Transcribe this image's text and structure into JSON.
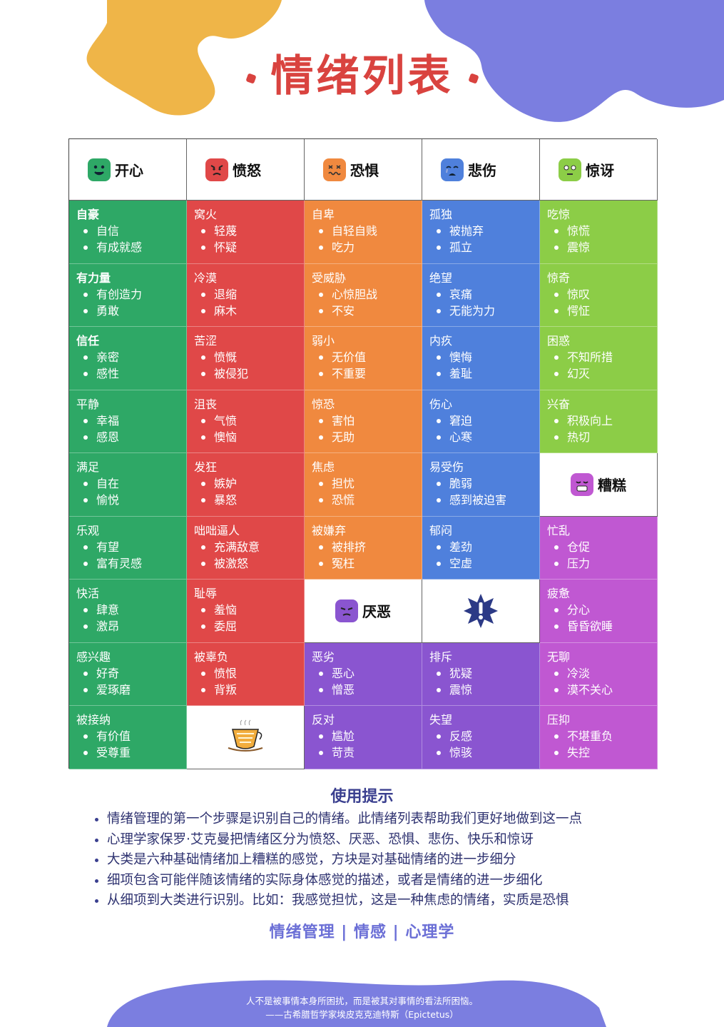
{
  "title": "情绪列表",
  "headers": [
    {
      "label": "开心",
      "color": "#2ea866"
    },
    {
      "label": "愤怒",
      "color": "#e04848"
    },
    {
      "label": "恐惧",
      "color": "#f0893f"
    },
    {
      "label": "悲伤",
      "color": "#4f80dc"
    },
    {
      "label": "惊讶",
      "color": "#8ccd47"
    }
  ],
  "col_happy": [
    {
      "head": "自豪",
      "items": [
        "自信",
        "有成就感"
      ]
    },
    {
      "head": "有力量",
      "items": [
        "有创造力",
        "勇敢"
      ]
    },
    {
      "head": "信任",
      "items": [
        "亲密",
        "感性"
      ]
    },
    {
      "head": "平静",
      "items": [
        "幸福",
        "感恩"
      ]
    },
    {
      "head": "满足",
      "items": [
        "自在",
        "愉悦"
      ]
    },
    {
      "head": "乐观",
      "items": [
        "有望",
        "富有灵感"
      ]
    },
    {
      "head": "快活",
      "items": [
        "肆意",
        "激昂"
      ]
    },
    {
      "head": "感兴趣",
      "items": [
        "好奇",
        "爱琢磨"
      ]
    },
    {
      "head": "被接纳",
      "items": [
        "有价值",
        "受尊重"
      ]
    }
  ],
  "col_angry": [
    {
      "head": "窝火",
      "items": [
        "轻蔑",
        "怀疑"
      ]
    },
    {
      "head": "冷漠",
      "items": [
        "退缩",
        "麻木"
      ]
    },
    {
      "head": "苦涩",
      "items": [
        "愤慨",
        "被侵犯"
      ]
    },
    {
      "head": "沮丧",
      "items": [
        "气愤",
        "懊恼"
      ]
    },
    {
      "head": "发狂",
      "items": [
        "嫉妒",
        "暴怒"
      ]
    },
    {
      "head": "咄咄逼人",
      "items": [
        "充满敌意",
        "被激怒"
      ]
    },
    {
      "head": "耻辱",
      "items": [
        "羞恼",
        "委屈"
      ]
    },
    {
      "head": "被辜负",
      "items": [
        "愤恨",
        "背叛"
      ]
    }
  ],
  "col_fear": [
    {
      "head": "自卑",
      "items": [
        "自轻自贱",
        "吃力"
      ]
    },
    {
      "head": "受威胁",
      "items": [
        "心惊胆战",
        "不安"
      ]
    },
    {
      "head": "弱小",
      "items": [
        "无价值",
        "不重要"
      ]
    },
    {
      "head": "惊恐",
      "items": [
        "害怕",
        "无助"
      ]
    },
    {
      "head": "焦虑",
      "items": [
        "担忧",
        "恐慌"
      ]
    },
    {
      "head": "被嫌弃",
      "items": [
        "被排挤",
        "冤枉"
      ]
    }
  ],
  "col_sad": [
    {
      "head": "孤独",
      "items": [
        "被抛弃",
        "孤立"
      ]
    },
    {
      "head": "绝望",
      "items": [
        "哀痛",
        "无能为力"
      ]
    },
    {
      "head": "内疚",
      "items": [
        "懊悔",
        "羞耻"
      ]
    },
    {
      "head": "伤心",
      "items": [
        "窘迫",
        "心寒"
      ]
    },
    {
      "head": "易受伤",
      "items": [
        "脆弱",
        "感到被迫害"
      ]
    },
    {
      "head": "郁闷",
      "items": [
        "差劲",
        "空虚"
      ]
    }
  ],
  "col_surprise": [
    {
      "head": "吃惊",
      "items": [
        "惊慌",
        "震惊"
      ]
    },
    {
      "head": "惊奇",
      "items": [
        "惊叹",
        "愕怔"
      ]
    },
    {
      "head": "困惑",
      "items": [
        "不知所措",
        "幻灭"
      ]
    },
    {
      "head": "兴奋",
      "items": [
        "积极向上",
        "热切"
      ]
    }
  ],
  "bad_label": "糟糕",
  "col_bad": [
    {
      "head": "忙乱",
      "items": [
        "仓促",
        "压力"
      ]
    },
    {
      "head": "疲惫",
      "items": [
        "分心",
        "昏昏欲睡"
      ]
    },
    {
      "head": "无聊",
      "items": [
        "冷淡",
        "漠不关心"
      ]
    },
    {
      "head": "压抑",
      "items": [
        "不堪重负",
        "失控"
      ]
    }
  ],
  "disgust_label": "厌恶",
  "col_disgust_fear": [
    {
      "head": "恶劣",
      "items": [
        "恶心",
        "憎恶"
      ]
    },
    {
      "head": "反对",
      "items": [
        "尴尬",
        "苛责"
      ]
    }
  ],
  "col_disgust_sad": [
    {
      "head": "排斥",
      "items": [
        "犹疑",
        "震惊"
      ]
    },
    {
      "head": "失望",
      "items": [
        "反感",
        "惊骇"
      ]
    }
  ],
  "tips": {
    "title": "使用提示",
    "items": [
      "情绪管理的第一个步骤是识别自己的情绪。此情绪列表帮助我们更好地做到这一点",
      "心理学家保罗·艾克曼把情绪区分为愤怒、厌恶、恐惧、悲伤、快乐和惊讶",
      "大类是六种基础情绪加上糟糕的感觉，方块是对基础情绪的进一步细分",
      "细项包含可能伴随该情绪的实际身体感觉的描述，或者是情绪的进一步细化",
      "从细项到大类进行识别。比如：我感觉担忧，这是一种焦虑的情绪，实质是恐惧"
    ]
  },
  "tags": "情绪管理 | 情感 | 心理学",
  "quote": {
    "line1": "人不是被事情本身所困扰，而是被其对事情的看法所困恼。",
    "line2": "——古希腊哲学家埃皮克克迪特斯（Epictetus）"
  },
  "colors": {
    "green": "#2ea866",
    "red": "#e04848",
    "orange": "#f0893f",
    "blue": "#4f80dc",
    "lime": "#8ccd47",
    "purple": "#8a55d0",
    "magenta": "#c058d2",
    "blob_yellow": "#efb548",
    "blob_violet": "#7b7ee0",
    "title": "#d9433f"
  }
}
